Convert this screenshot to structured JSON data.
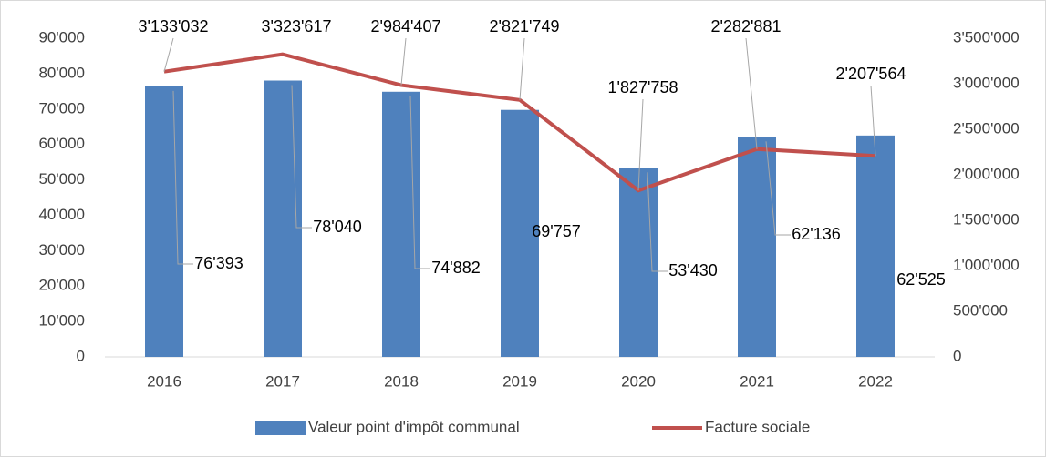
{
  "chart_data": {
    "type": "bar_line",
    "categories": [
      "2016",
      "2017",
      "2018",
      "2019",
      "2020",
      "2021",
      "2022"
    ],
    "series": [
      {
        "name": "Valeur point d'impôt communal",
        "type": "bar",
        "color": "#4f81bd",
        "values": [
          76393,
          78040,
          74882,
          69757,
          53430,
          62136,
          62525
        ],
        "value_labels": [
          "76'393",
          "78'040",
          "74'882",
          "69'757",
          "53'430",
          "62'136",
          "62'525"
        ]
      },
      {
        "name": "Facture sociale",
        "type": "line",
        "axis": "y2",
        "color": "#c0504d",
        "values": [
          3133032,
          3323617,
          2984407,
          2821749,
          1827758,
          2282881,
          2207564
        ],
        "value_labels": [
          "3'133'032",
          "3'323'617",
          "2'984'407",
          "2'821'749",
          "1'827'758",
          "2'282'881",
          "2'207'564"
        ]
      }
    ],
    "ylim": [
      0,
      90000
    ],
    "yticks": [
      0,
      {
        "value": 10000,
        "label": "10'000"
      },
      {
        "value": 20000,
        "label": "20'000"
      },
      {
        "value": 30000,
        "label": "30'000"
      },
      {
        "value": 40000,
        "label": "40'000"
      },
      {
        "value": 50000,
        "label": "50'000"
      },
      {
        "value": 60000,
        "label": "60'000"
      },
      {
        "value": 70000,
        "label": "70'000"
      },
      {
        "value": 80000,
        "label": "80'000"
      },
      {
        "value": 90000,
        "label": "90'000"
      }
    ],
    "y2lim": [
      0,
      3500000
    ],
    "y2ticks": [
      0,
      {
        "value": 500000,
        "label": "500'000"
      },
      {
        "value": 1000000,
        "label": "1'000'000"
      },
      {
        "value": 1500000,
        "label": "1'500'000"
      },
      {
        "value": 2000000,
        "label": "2'000'000"
      },
      {
        "value": 2500000,
        "label": "2'500'000"
      },
      {
        "value": 3000000,
        "label": "3'000'000"
      },
      {
        "value": 3500000,
        "label": "3'500'000"
      }
    ],
    "grid": false,
    "legend": "bottom"
  }
}
